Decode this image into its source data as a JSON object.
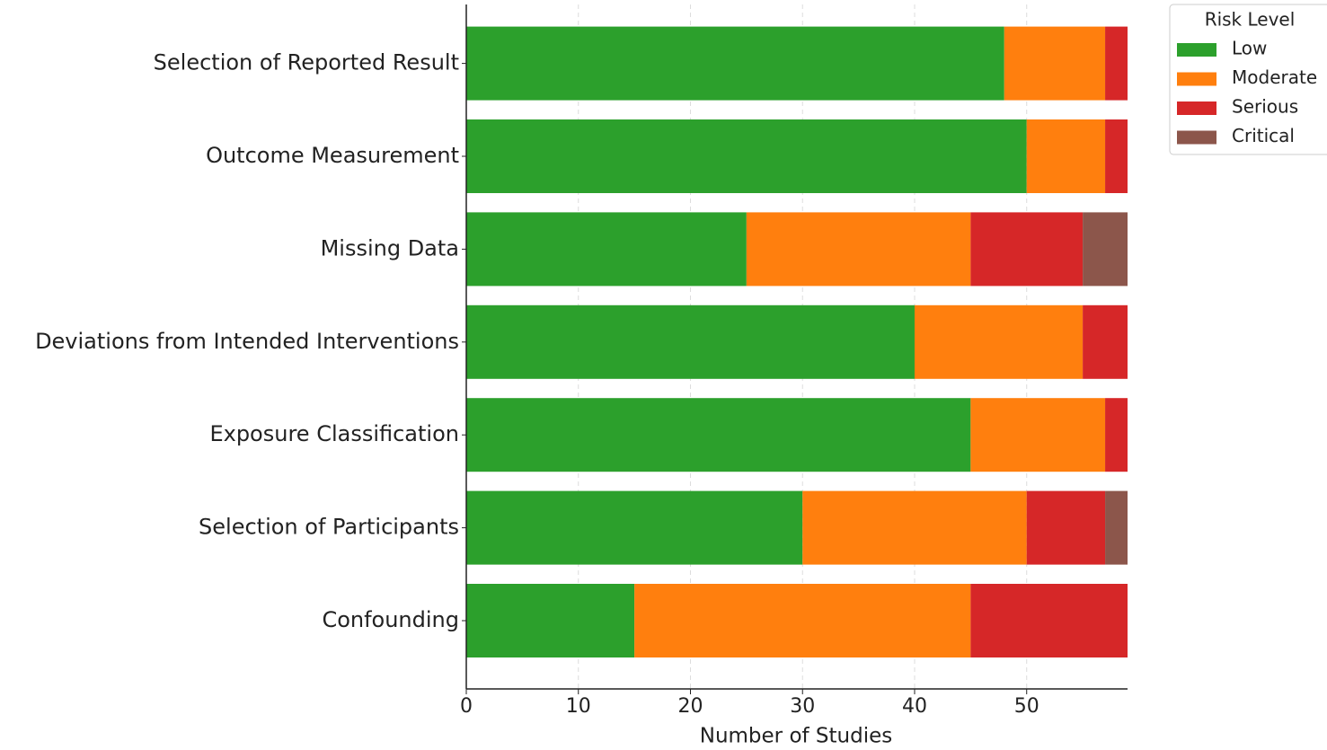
{
  "chart_data": {
    "type": "stacked-barh",
    "xlabel": "Number of Studies",
    "categories": [
      "Confounding",
      "Selection of Participants",
      "Exposure Classification",
      "Deviations from Intended Interventions",
      "Missing Data",
      "Outcome Measurement",
      "Selection of Reported Result"
    ],
    "series": [
      {
        "name": "Low",
        "color": "#2ca02c",
        "values": [
          15,
          30,
          45,
          40,
          25,
          50,
          48
        ]
      },
      {
        "name": "Moderate",
        "color": "#ff7f0e",
        "values": [
          30,
          20,
          12,
          15,
          20,
          7,
          9
        ]
      },
      {
        "name": "Serious",
        "color": "#d62728",
        "values": [
          14,
          7,
          2,
          4,
          10,
          2,
          2
        ]
      },
      {
        "name": "Critical",
        "color": "#8c564b",
        "values": [
          0,
          2,
          0,
          0,
          4,
          0,
          0
        ]
      }
    ],
    "xlim": [
      0,
      59
    ],
    "xticks": [
      0,
      10,
      20,
      30,
      40,
      50
    ],
    "grid": true,
    "legend_title": "Risk Level",
    "legend": "upper right"
  }
}
